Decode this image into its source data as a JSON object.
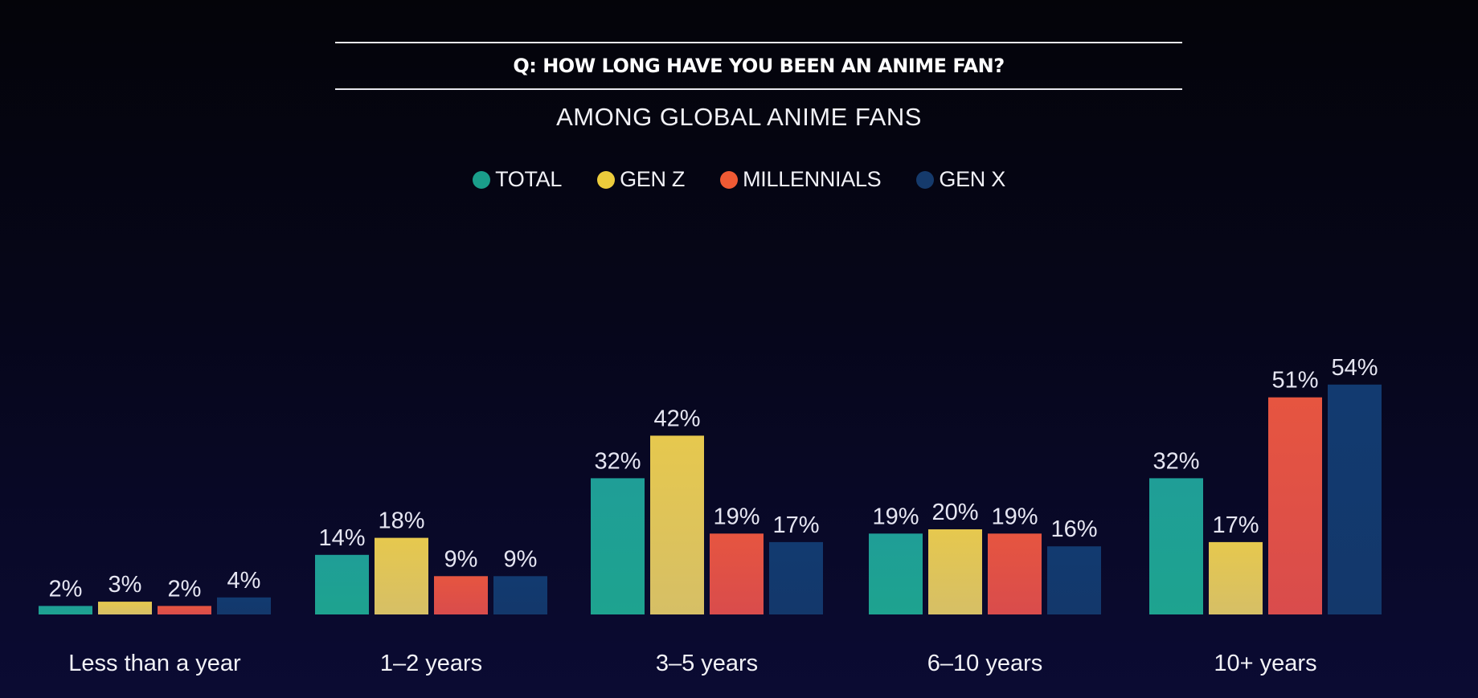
{
  "question": "Q: HOW LONG HAVE YOU BEEN AN ANIME FAN?",
  "subtitle": "AMONG GLOBAL ANIME FANS",
  "legend": [
    {
      "label": "TOTAL",
      "color": "#1a9e8a"
    },
    {
      "label": "GEN Z",
      "color": "#eccc3c"
    },
    {
      "label": "MILLENNIALS",
      "color": "#f05a34"
    },
    {
      "label": "GEN X",
      "color": "#153a6b"
    }
  ],
  "chart_data": {
    "type": "bar",
    "title": "Q: HOW LONG HAVE YOU BEEN AN ANIME FAN?",
    "subtitle": "AMONG GLOBAL ANIME FANS",
    "categories": [
      "Less than a year",
      "1–2 years",
      "3–5 years",
      "6–10 years",
      "10+ years"
    ],
    "series": [
      {
        "name": "TOTAL",
        "values": [
          2,
          14,
          32,
          19,
          32
        ],
        "labels": [
          "2%",
          "14%",
          "32%",
          "19%",
          "32%"
        ],
        "color_top": "#1f9e97",
        "color_bottom": "#1ea38f"
      },
      {
        "name": "GEN Z",
        "values": [
          3,
          18,
          42,
          20,
          17
        ],
        "labels": [
          "3%",
          "18%",
          "42%",
          "20%",
          "17%"
        ],
        "color_top": "#e6c84e",
        "color_bottom": "#d6bf66"
      },
      {
        "name": "MILLENNIALS",
        "values": [
          2,
          9,
          19,
          19,
          51
        ],
        "labels": [
          "2%",
          "9%",
          "19%",
          "19%",
          "51%"
        ],
        "color_top": "#e65540",
        "color_bottom": "#d94c4c"
      },
      {
        "name": "GEN X",
        "values": [
          4,
          9,
          17,
          16,
          54
        ],
        "labels": [
          "4%",
          "9%",
          "17%",
          "16%",
          "54%"
        ],
        "color_top": "#123a70",
        "color_bottom": "#13386b"
      }
    ],
    "ylim": [
      0,
      54
    ],
    "grid": false,
    "legend_position": "top-center"
  }
}
